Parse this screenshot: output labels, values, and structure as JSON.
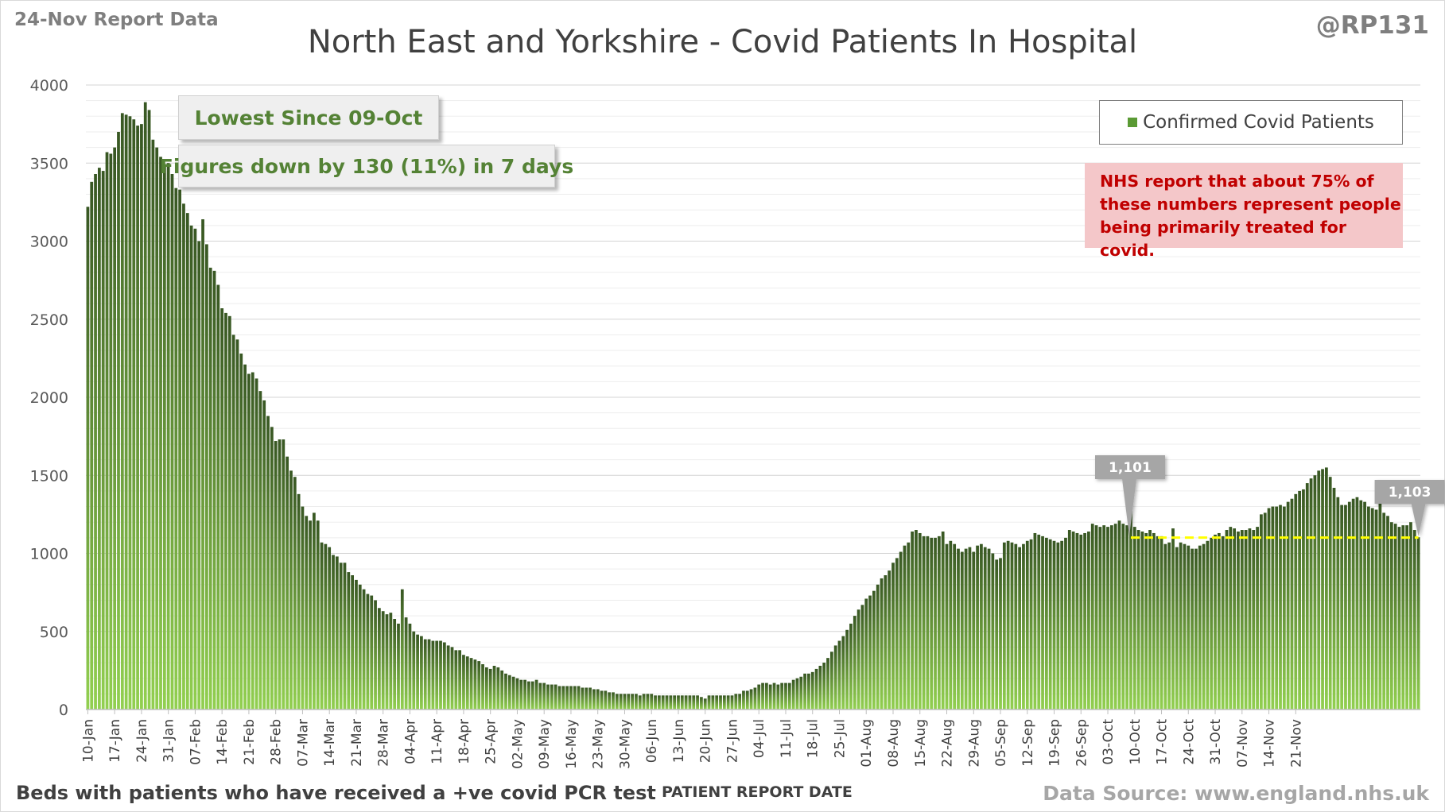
{
  "header": {
    "report_date": "24-Nov Report Data",
    "title": "North East and Yorkshire - Covid Patients In Hospital",
    "handle": "@RP131"
  },
  "callouts": {
    "lowest": "Lowest Since 09-Oct",
    "change": "Figures down by 130 (11%) in 7 days",
    "nhs_note": "NHS report that about 75% of these numbers represent people being primarily treated for covid."
  },
  "footer": {
    "footnote": "Beds with patients who have received a +ve covid PCR test",
    "source": "Data Source: www.england.nhs.uk"
  },
  "colors": {
    "bar_top": "#385723",
    "bar_bottom": "#92d050",
    "reference_line": "#ffff00",
    "grid": "#d9d9d9",
    "label_box": "#a6a6a6"
  },
  "chart_data": {
    "type": "bar",
    "title": "North East and Yorkshire - Covid Patients In Hospital",
    "xlabel": "PATIENT REPORT DATE",
    "ylabel": "",
    "ylim": [
      0,
      4000
    ],
    "yticks": [
      0,
      500,
      1000,
      1500,
      2000,
      2500,
      3000,
      3500,
      4000
    ],
    "grid": true,
    "legend_position": "top-right",
    "start_date": "10-Jan",
    "end_date": "24-Nov",
    "x_tick_labels": [
      "10-Jan",
      "17-Jan",
      "24-Jan",
      "31-Jan",
      "07-Feb",
      "14-Feb",
      "21-Feb",
      "28-Feb",
      "07-Mar",
      "14-Mar",
      "21-Mar",
      "28-Mar",
      "04-Apr",
      "11-Apr",
      "18-Apr",
      "25-Apr",
      "02-May",
      "09-May",
      "16-May",
      "23-May",
      "30-May",
      "06-Jun",
      "13-Jun",
      "20-Jun",
      "27-Jun",
      "04-Jul",
      "11-Jul",
      "18-Jul",
      "25-Jul",
      "01-Aug",
      "08-Aug",
      "15-Aug",
      "22-Aug",
      "29-Aug",
      "05-Sep",
      "12-Sep",
      "19-Sep",
      "26-Sep",
      "03-Oct",
      "10-Oct",
      "17-Oct",
      "24-Oct",
      "31-Oct",
      "07-Nov",
      "14-Nov",
      "21-Nov"
    ],
    "series": [
      {
        "name": "Confirmed Covid Patients",
        "values": [
          3220,
          3380,
          3430,
          3470,
          3450,
          3570,
          3560,
          3600,
          3700,
          3820,
          3810,
          3800,
          3780,
          3740,
          3750,
          3890,
          3840,
          3650,
          3600,
          3540,
          3490,
          3500,
          3430,
          3340,
          3330,
          3240,
          3180,
          3100,
          3080,
          3000,
          3140,
          2980,
          2830,
          2810,
          2720,
          2570,
          2540,
          2520,
          2400,
          2370,
          2280,
          2210,
          2150,
          2160,
          2120,
          2040,
          1980,
          1880,
          1810,
          1720,
          1730,
          1730,
          1620,
          1530,
          1490,
          1380,
          1300,
          1240,
          1210,
          1260,
          1210,
          1070,
          1060,
          1040,
          990,
          980,
          940,
          940,
          880,
          860,
          830,
          800,
          770,
          740,
          730,
          700,
          650,
          630,
          610,
          620,
          580,
          550,
          770,
          590,
          550,
          500,
          480,
          470,
          450,
          450,
          440,
          440,
          440,
          430,
          410,
          400,
          380,
          380,
          350,
          340,
          330,
          320,
          310,
          290,
          270,
          260,
          280,
          270,
          250,
          230,
          220,
          210,
          200,
          190,
          190,
          180,
          180,
          190,
          170,
          170,
          160,
          160,
          160,
          150,
          150,
          150,
          150,
          150,
          150,
          140,
          140,
          140,
          130,
          130,
          120,
          120,
          110,
          110,
          100,
          100,
          100,
          100,
          100,
          100,
          90,
          100,
          100,
          100,
          90,
          90,
          90,
          90,
          90,
          90,
          90,
          90,
          90,
          90,
          90,
          90,
          80,
          70,
          90,
          90,
          90,
          90,
          90,
          90,
          90,
          100,
          100,
          120,
          120,
          130,
          140,
          160,
          170,
          170,
          160,
          170,
          160,
          170,
          170,
          170,
          190,
          200,
          210,
          230,
          230,
          240,
          260,
          280,
          300,
          330,
          370,
          410,
          440,
          470,
          510,
          550,
          600,
          640,
          670,
          710,
          730,
          760,
          800,
          840,
          860,
          890,
          940,
          970,
          1010,
          1050,
          1070,
          1140,
          1150,
          1130,
          1110,
          1110,
          1100,
          1100,
          1110,
          1140,
          1060,
          1080,
          1060,
          1030,
          1010,
          1030,
          1040,
          1010,
          1050,
          1060,
          1040,
          1030,
          1000,
          960,
          970,
          1070,
          1080,
          1070,
          1060,
          1040,
          1060,
          1080,
          1090,
          1130,
          1120,
          1110,
          1100,
          1090,
          1080,
          1070,
          1080,
          1100,
          1150,
          1140,
          1130,
          1120,
          1130,
          1140,
          1190,
          1180,
          1170,
          1180,
          1170,
          1180,
          1190,
          1210,
          1190,
          1180,
          1280,
          1170,
          1150,
          1140,
          1130,
          1150,
          1130,
          1110,
          1110,
          1060,
          1070,
          1160,
          1040,
          1070,
          1060,
          1050,
          1030,
          1030,
          1050,
          1060,
          1080,
          1100,
          1120,
          1130,
          1110,
          1150,
          1170,
          1160,
          1140,
          1150,
          1150,
          1160,
          1150,
          1170,
          1250,
          1260,
          1290,
          1300,
          1300,
          1310,
          1300,
          1330,
          1350,
          1380,
          1400,
          1410,
          1450,
          1480,
          1500,
          1530,
          1540,
          1550,
          1490,
          1420,
          1360,
          1310,
          1310,
          1330,
          1350,
          1360,
          1340,
          1330,
          1300,
          1290,
          1280,
          1340,
          1260,
          1240,
          1200,
          1190,
          1170,
          1180,
          1180,
          1200,
          1150,
          1103
        ]
      }
    ],
    "annotations": [
      {
        "text": "1,101",
        "value": 1101,
        "date": "09-Oct"
      },
      {
        "text": "1,103",
        "value": 1103,
        "date": "24-Nov"
      }
    ]
  }
}
